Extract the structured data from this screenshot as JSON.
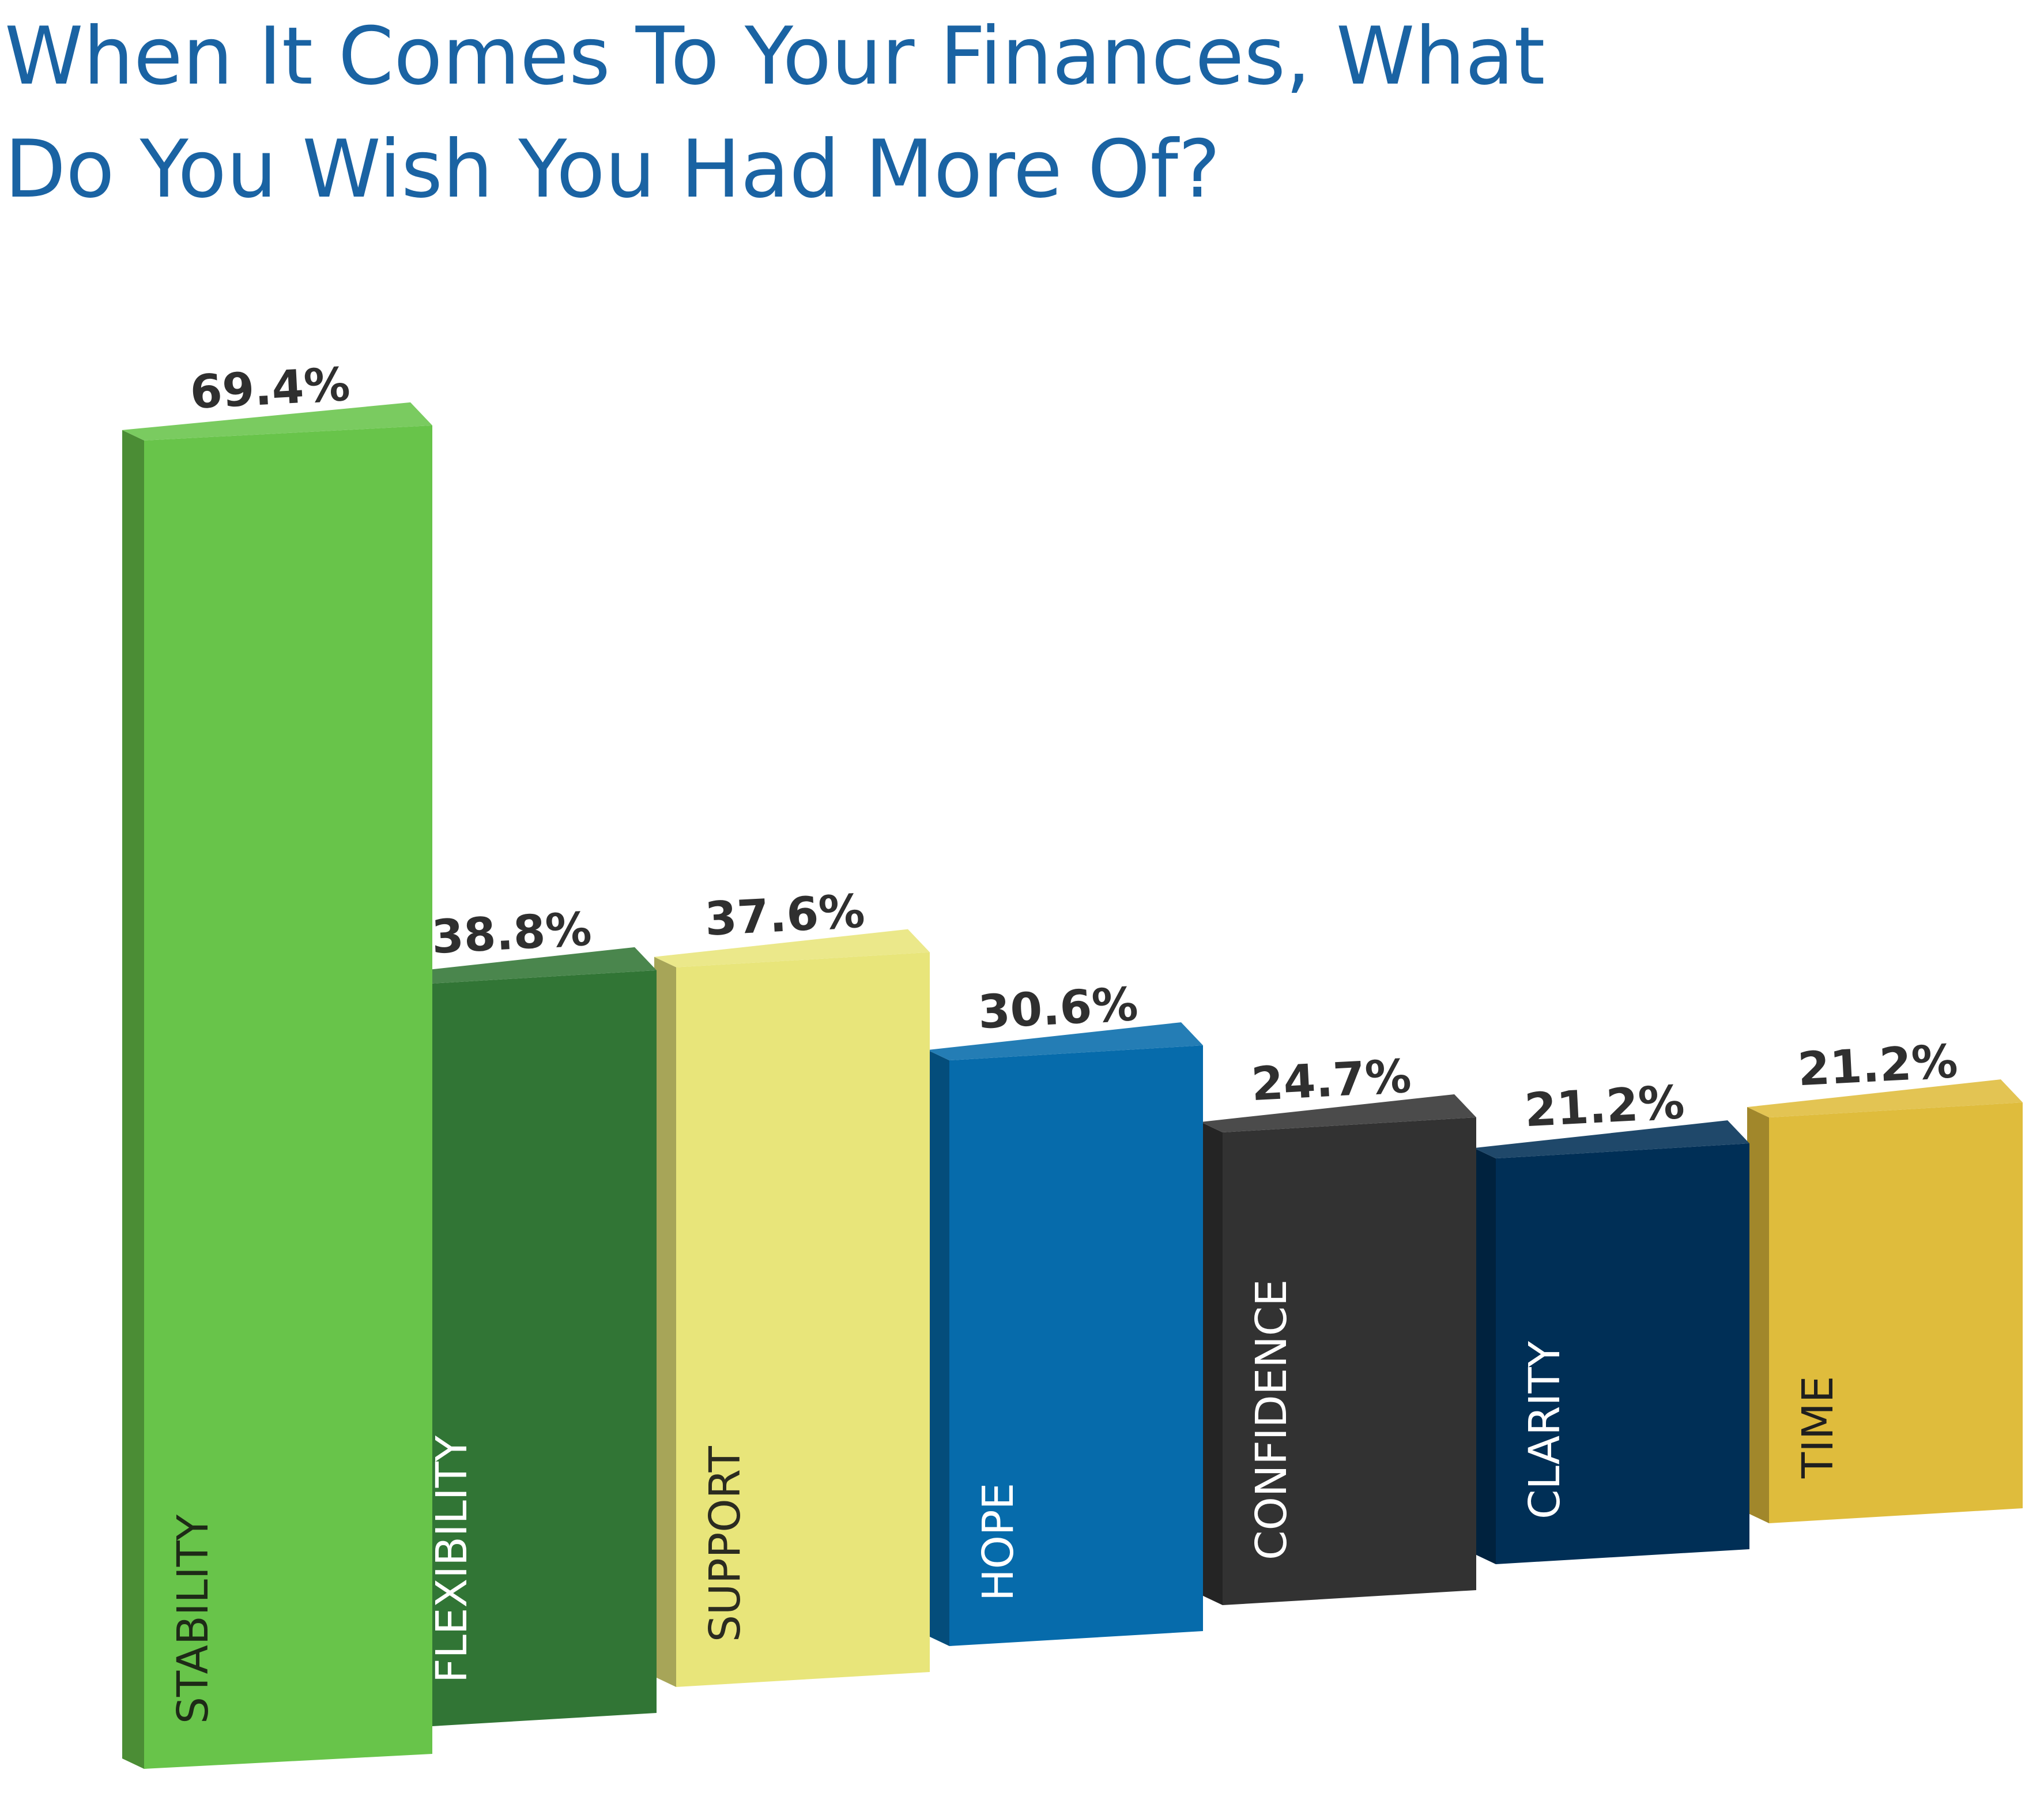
{
  "chart_data": {
    "type": "bar",
    "title": [
      "When It Comes To Your Finances, What",
      "Do You Wish You Had More Of?"
    ],
    "categories": [
      "STABILITY",
      "FLEXIBILITY",
      "SUPPORT",
      "HOPE",
      "CONFIDENCE",
      "CLARITY",
      "TIME"
    ],
    "values": [
      69.4,
      38.8,
      37.6,
      30.6,
      24.7,
      21.2,
      21.2
    ],
    "value_labels": [
      "69.4%",
      "38.8%",
      "37.6%",
      "30.6%",
      "24.7%",
      "21.2%",
      "21.2%"
    ],
    "colors": [
      "#68c44a",
      "#317535",
      "#e8e57a",
      "#066bab",
      "#323232",
      "#002f56",
      "#dfbc3c"
    ],
    "label_colors": [
      "#1e2a17",
      "#ffffff",
      "#2b2b20",
      "#ffffff",
      "#ffffff",
      "#ffffff",
      "#1f1f1f"
    ],
    "grid": false,
    "legend": "none"
  }
}
